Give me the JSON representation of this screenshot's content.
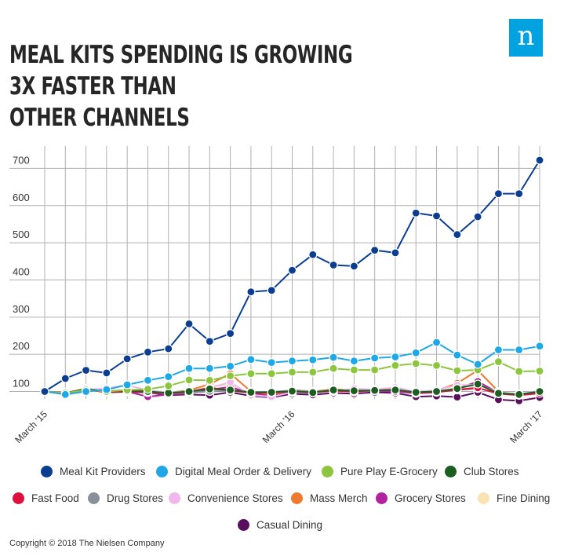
{
  "header": {
    "title_line1": "MEAL KITS SPENDING IS GROWING 3X FASTER THAN",
    "title_line2": "OTHER CHANNELS",
    "logo_letter": "n"
  },
  "footer": {
    "copyright": "Copyright © 2018 The Nielsen Company"
  },
  "colors": {
    "grid": "#b0b0b0",
    "axis_text": "#333333",
    "title": "#262626",
    "logo": "#00a3e0"
  },
  "chart_data": {
    "type": "line",
    "title": "MEAL KITS SPENDING IS GROWING 3X FASTER THAN OTHER CHANNELS",
    "xlabel": "",
    "ylabel": "",
    "ylim": [
      80,
      760
    ],
    "yticks": [
      100,
      200,
      300,
      400,
      500,
      600,
      700
    ],
    "grid": true,
    "legend": "bottom",
    "x": [
      "Mar '15",
      "Apr '15",
      "May '15",
      "Jun '15",
      "Jul '15",
      "Aug '15",
      "Sep '15",
      "Oct '15",
      "Nov '15",
      "Dec '15",
      "Jan '16",
      "Feb '16",
      "Mar '16",
      "Apr '16",
      "May '16",
      "Jun '16",
      "Jul '16",
      "Aug '16",
      "Sep '16",
      "Oct '16",
      "Nov '16",
      "Dec '16",
      "Jan '17",
      "Feb '17",
      "Mar '17"
    ],
    "xtick_labels": [
      {
        "index": 0,
        "label": "March '15"
      },
      {
        "index": 12,
        "label": "March '16"
      },
      {
        "index": 24,
        "label": "March '17"
      }
    ],
    "series": [
      {
        "name": "Meal Kit Providers",
        "color": "#0b3d91",
        "values": [
          100,
          135,
          157,
          150,
          188,
          206,
          215,
          282,
          235,
          256,
          368,
          372,
          426,
          468,
          440,
          437,
          480,
          473,
          580,
          572,
          522,
          570,
          632,
          632,
          722
        ]
      },
      {
        "name": "Digital Meal Order & Delivery",
        "color": "#1fa8e6",
        "values": [
          100,
          92,
          100,
          105,
          118,
          130,
          140,
          162,
          162,
          168,
          186,
          178,
          182,
          185,
          192,
          182,
          190,
          193,
          204,
          232,
          198,
          173,
          212,
          212,
          222
        ]
      },
      {
        "name": "Pure Play E-Grocery",
        "color": "#8cc63f",
        "values": [
          100,
          96,
          104,
          100,
          104,
          106,
          115,
          131,
          130,
          142,
          148,
          148,
          152,
          152,
          162,
          158,
          158,
          170,
          175,
          170,
          156,
          158,
          180,
          154,
          155
        ]
      },
      {
        "name": "Club Stores",
        "color": "#1b5e20",
        "values": [
          100,
          95,
          107,
          100,
          102,
          100,
          96,
          100,
          107,
          104,
          98,
          98,
          101,
          97,
          104,
          102,
          103,
          104,
          98,
          100,
          108,
          120,
          95,
          92,
          100
        ]
      },
      {
        "name": "Fast Food",
        "color": "#e0103e",
        "values": [
          100,
          97,
          105,
          98,
          100,
          98,
          95,
          99,
          110,
          103,
          96,
          97,
          100,
          98,
          102,
          100,
          103,
          105,
          96,
          98,
          105,
          110,
          94,
          90,
          95
        ]
      },
      {
        "name": "Drug Stores",
        "color": "#8a9099",
        "values": [
          100,
          94,
          104,
          99,
          101,
          97,
          94,
          97,
          100,
          102,
          97,
          99,
          103,
          100,
          103,
          100,
          102,
          106,
          98,
          100,
          104,
          108,
          97,
          92,
          98
        ]
      },
      {
        "name": "Convenience Stores",
        "color": "#f0b8ea",
        "values": [
          100,
          98,
          104,
          109,
          117,
          103,
          98,
          100,
          110,
          125,
          90,
          86,
          98,
          97,
          100,
          108,
          105,
          111,
          99,
          104,
          117,
          118,
          98,
          93,
          101
        ]
      },
      {
        "name": "Mass Merch",
        "color": "#ee7a30",
        "values": [
          100,
          96,
          108,
          101,
          104,
          100,
          97,
          103,
          120,
          148,
          100,
          92,
          104,
          100,
          106,
          103,
          106,
          104,
          100,
          102,
          122,
          157,
          100,
          90,
          97
        ]
      },
      {
        "name": "Grocery Stores",
        "color": "#b0229e",
        "values": [
          100,
          95,
          105,
          99,
          100,
          86,
          92,
          95,
          105,
          112,
          95,
          90,
          98,
          96,
          103,
          100,
          102,
          100,
          95,
          98,
          106,
          127,
          96,
          90,
          96
        ]
      },
      {
        "name": "Fine Dining",
        "color": "#fbe2b2",
        "values": [
          100,
          97,
          103,
          99,
          104,
          99,
          95,
          100,
          112,
          120,
          93,
          91,
          100,
          97,
          102,
          99,
          104,
          107,
          97,
          100,
          109,
          127,
          97,
          93,
          99
        ]
      },
      {
        "name": "Casual Dining",
        "color": "#5a0f5e",
        "values": [
          100,
          94,
          106,
          98,
          99,
          97,
          90,
          92,
          90,
          98,
          88,
          84,
          94,
          91,
          96,
          94,
          98,
          96,
          86,
          88,
          85,
          98,
          78,
          75,
          84
        ]
      }
    ]
  }
}
